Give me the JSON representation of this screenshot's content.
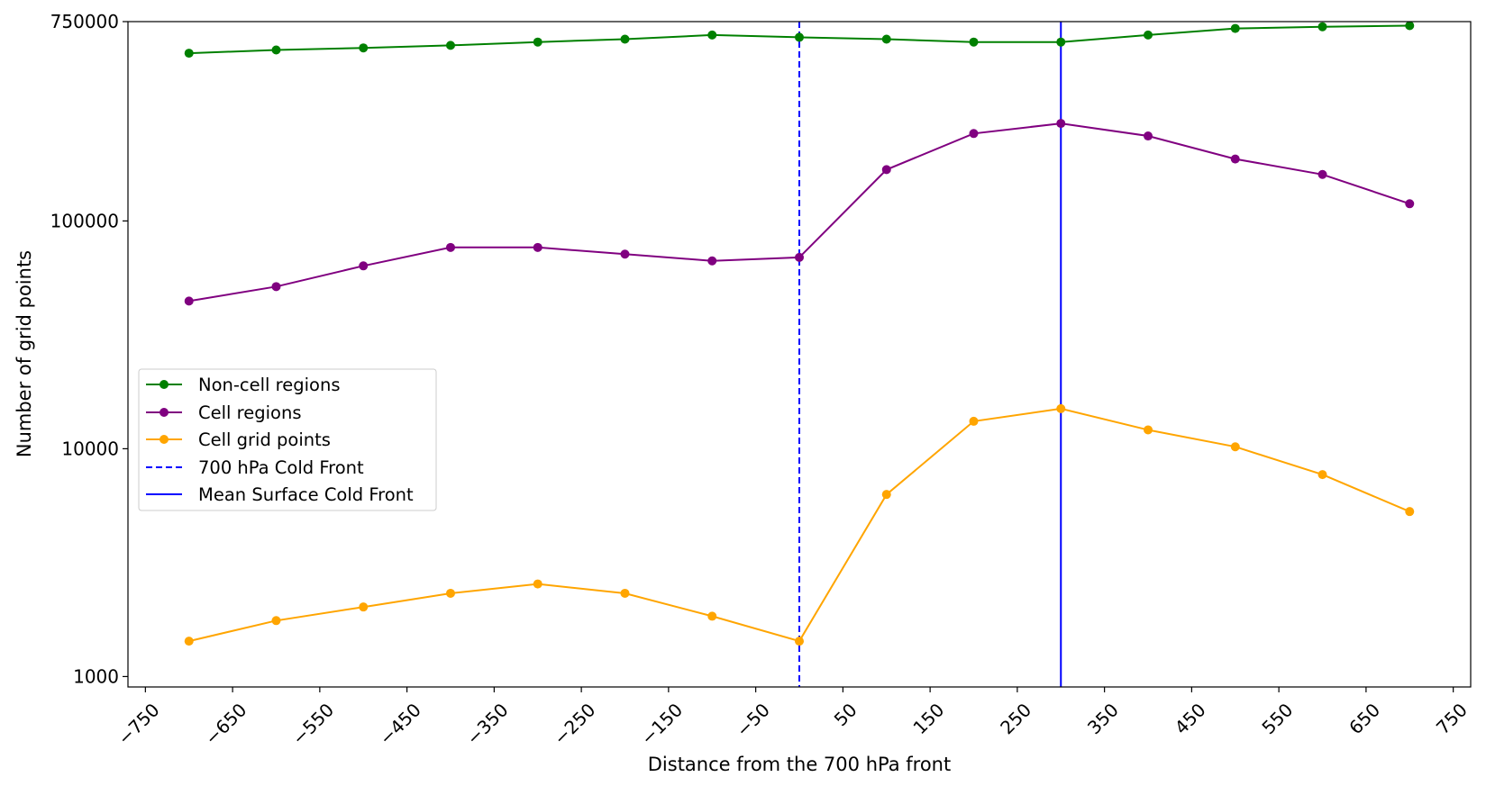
{
  "chart_data": {
    "type": "line",
    "xlabel": "Distance from the 700 hPa front",
    "ylabel": "Number of grid points",
    "yscale": "log",
    "xlim": [
      -770,
      770
    ],
    "ylim": [
      900,
      750000
    ],
    "x_ticks": [
      -750,
      -650,
      -550,
      -450,
      -350,
      -250,
      -150,
      -50,
      50,
      150,
      250,
      350,
      450,
      550,
      650,
      750
    ],
    "x_tick_labels": [
      "−750",
      "−650",
      "−550",
      "−450",
      "−350",
      "−250",
      "−150",
      "−50",
      "50",
      "150",
      "250",
      "350",
      "450",
      "550",
      "650",
      "750"
    ],
    "y_ticks": [
      1000,
      10000,
      100000,
      750000
    ],
    "y_tick_labels": [
      "1000",
      "10000",
      "100000",
      "750000"
    ],
    "x": [
      -700,
      -600,
      -500,
      -400,
      -300,
      -200,
      -100,
      0,
      100,
      200,
      300,
      400,
      500,
      600,
      700
    ],
    "series": [
      {
        "name": "Non-cell regions",
        "color": "#008000",
        "marker": "circle",
        "values": [
          545000,
          563000,
          575000,
          590000,
          610000,
          628000,
          655000,
          640000,
          628000,
          610000,
          610000,
          655000,
          700000,
          712000,
          720000
        ]
      },
      {
        "name": "Cell regions",
        "color": "#800080",
        "marker": "circle",
        "values": [
          44500,
          51500,
          63500,
          76500,
          76500,
          71500,
          66800,
          69200,
          168000,
          242000,
          268000,
          236000,
          187000,
          160000,
          119000
        ]
      },
      {
        "name": "Cell grid points",
        "color": "#ffa500",
        "marker": "circle",
        "values": [
          1430,
          1760,
          2020,
          2320,
          2550,
          2320,
          1840,
          1430,
          6300,
          13200,
          15000,
          12100,
          10200,
          7700,
          5300
        ]
      }
    ],
    "vlines": [
      {
        "name": "700 hPa Cold Front",
        "x": 0,
        "color": "#0000ff",
        "style": "dashed"
      },
      {
        "name": "Mean Surface Cold Front",
        "x": 300,
        "color": "#0000ff",
        "style": "solid"
      }
    ],
    "legend": {
      "placement": "center-left",
      "entries": [
        "Non-cell regions",
        "Cell regions",
        "Cell grid points",
        "700 hPa Cold Front",
        "Mean Surface Cold Front"
      ]
    },
    "grid": false
  }
}
